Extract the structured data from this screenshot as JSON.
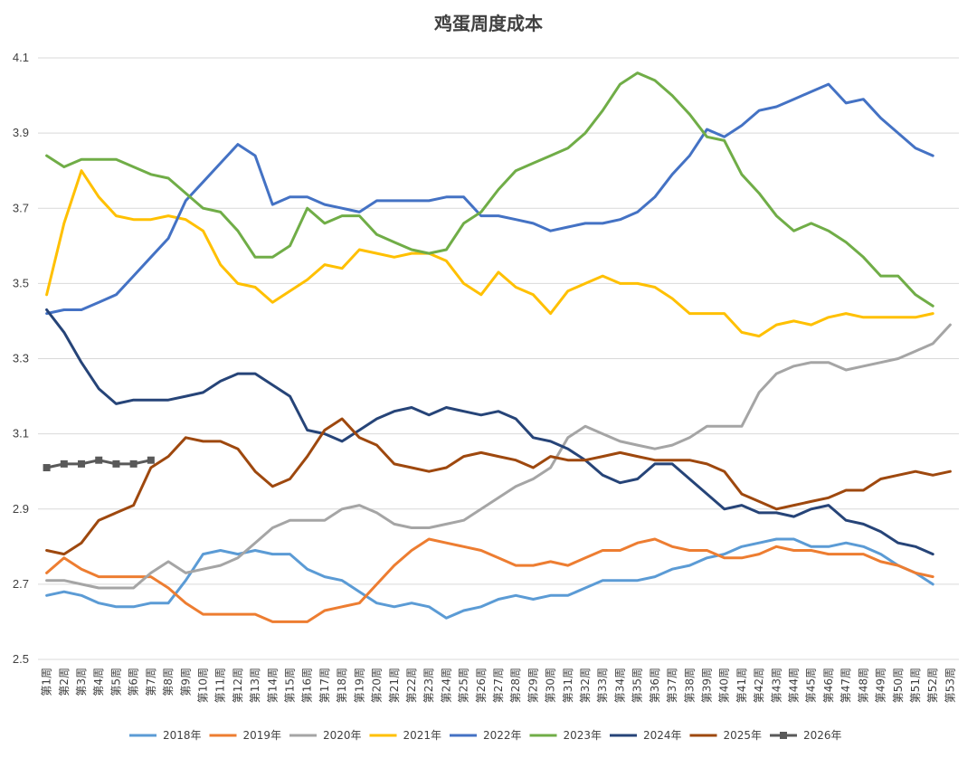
{
  "chart_data": {
    "type": "line",
    "title": "鸡蛋周度成本",
    "xlabel": "",
    "ylabel": "",
    "ylim": [
      2.5,
      4.1
    ],
    "yticks": [
      "2.5",
      "2.7",
      "2.9",
      "3.1",
      "3.3",
      "3.5",
      "3.7",
      "3.9",
      "4.1"
    ],
    "categories": [
      "第1周",
      "第2周",
      "第3周",
      "第4周",
      "第5周",
      "第6周",
      "第7周",
      "第8周",
      "第9周",
      "第10周",
      "第11周",
      "第12周",
      "第13周",
      "第14周",
      "第15周",
      "第16周",
      "第17周",
      "第18周",
      "第19周",
      "第20周",
      "第21周",
      "第22周",
      "第23周",
      "第24周",
      "第25周",
      "第26周",
      "第27周",
      "第28周",
      "第29周",
      "第30周",
      "第31周",
      "第32周",
      "第33周",
      "第34周",
      "第35周",
      "第36周",
      "第37周",
      "第38周",
      "第39周",
      "第40周",
      "第41周",
      "第42周",
      "第43周",
      "第44周",
      "第45周",
      "第46周",
      "第47周",
      "第48周",
      "第49周",
      "第50周",
      "第51周",
      "第52周",
      "第53周"
    ],
    "legend_position": "bottom",
    "grid": true,
    "series": [
      {
        "name": "2018年",
        "color": "#5b9bd5",
        "marker": "none",
        "values": [
          2.67,
          2.68,
          2.67,
          2.65,
          2.64,
          2.64,
          2.65,
          2.65,
          2.71,
          2.78,
          2.79,
          2.78,
          2.79,
          2.78,
          2.78,
          2.74,
          2.72,
          2.71,
          2.68,
          2.65,
          2.64,
          2.65,
          2.64,
          2.61,
          2.63,
          2.64,
          2.66,
          2.67,
          2.66,
          2.67,
          2.67,
          2.69,
          2.71,
          2.71,
          2.71,
          2.72,
          2.74,
          2.75,
          2.77,
          2.78,
          2.8,
          2.81,
          2.82,
          2.82,
          2.8,
          2.8,
          2.81,
          2.8,
          2.78,
          2.75,
          2.73,
          2.7,
          null
        ]
      },
      {
        "name": "2019年",
        "color": "#ed7d31",
        "marker": "none",
        "values": [
          2.73,
          2.77,
          2.74,
          2.72,
          2.72,
          2.72,
          2.72,
          2.69,
          2.65,
          2.62,
          2.62,
          2.62,
          2.62,
          2.6,
          2.6,
          2.6,
          2.63,
          2.64,
          2.65,
          2.7,
          2.75,
          2.79,
          2.82,
          2.81,
          2.8,
          2.79,
          2.77,
          2.75,
          2.75,
          2.76,
          2.75,
          2.77,
          2.79,
          2.79,
          2.81,
          2.82,
          2.8,
          2.79,
          2.79,
          2.77,
          2.77,
          2.78,
          2.8,
          2.79,
          2.79,
          2.78,
          2.78,
          2.78,
          2.76,
          2.75,
          2.73,
          2.72,
          null
        ]
      },
      {
        "name": "2020年",
        "color": "#a5a5a5",
        "marker": "none",
        "values": [
          2.71,
          2.71,
          2.7,
          2.69,
          2.69,
          2.69,
          2.73,
          2.76,
          2.73,
          2.74,
          2.75,
          2.77,
          2.81,
          2.85,
          2.87,
          2.87,
          2.87,
          2.9,
          2.91,
          2.89,
          2.86,
          2.85,
          2.85,
          2.86,
          2.87,
          2.9,
          2.93,
          2.96,
          2.98,
          3.01,
          3.09,
          3.12,
          3.1,
          3.08,
          3.07,
          3.06,
          3.07,
          3.09,
          3.12,
          3.12,
          3.12,
          3.21,
          3.26,
          3.28,
          3.29,
          3.29,
          3.27,
          3.28,
          3.29,
          3.3,
          3.32,
          3.34,
          3.39
        ]
      },
      {
        "name": "2021年",
        "color": "#ffc000",
        "marker": "none",
        "values": [
          3.47,
          3.66,
          3.8,
          3.73,
          3.68,
          3.67,
          3.67,
          3.68,
          3.67,
          3.64,
          3.55,
          3.5,
          3.49,
          3.45,
          3.48,
          3.51,
          3.55,
          3.54,
          3.59,
          3.58,
          3.57,
          3.58,
          3.58,
          3.56,
          3.5,
          3.47,
          3.53,
          3.49,
          3.47,
          3.42,
          3.48,
          3.5,
          3.52,
          3.5,
          3.5,
          3.49,
          3.46,
          3.42,
          3.42,
          3.42,
          3.37,
          3.36,
          3.39,
          3.4,
          3.39,
          3.41,
          3.42,
          3.41,
          3.41,
          3.41,
          3.41,
          3.42,
          null
        ]
      },
      {
        "name": "2022年",
        "color": "#4472c4",
        "marker": "none",
        "values": [
          3.42,
          3.43,
          3.43,
          3.45,
          3.47,
          3.52,
          3.57,
          3.62,
          3.72,
          3.77,
          3.82,
          3.87,
          3.84,
          3.71,
          3.73,
          3.73,
          3.71,
          3.7,
          3.69,
          3.72,
          3.72,
          3.72,
          3.72,
          3.73,
          3.73,
          3.68,
          3.68,
          3.67,
          3.66,
          3.64,
          3.65,
          3.66,
          3.66,
          3.67,
          3.69,
          3.73,
          3.79,
          3.84,
          3.91,
          3.89,
          3.92,
          3.96,
          3.97,
          3.99,
          4.01,
          4.03,
          3.98,
          3.99,
          3.94,
          3.9,
          3.86,
          3.84,
          null
        ]
      },
      {
        "name": "2023年",
        "color": "#70ad47",
        "marker": "none",
        "values": [
          3.84,
          3.81,
          3.83,
          3.83,
          3.83,
          3.81,
          3.79,
          3.78,
          3.74,
          3.7,
          3.69,
          3.64,
          3.57,
          3.57,
          3.6,
          3.7,
          3.66,
          3.68,
          3.68,
          3.63,
          3.61,
          3.59,
          3.58,
          3.59,
          3.66,
          3.69,
          3.75,
          3.8,
          3.82,
          3.84,
          3.86,
          3.9,
          3.96,
          4.03,
          4.06,
          4.04,
          4.0,
          3.95,
          3.89,
          3.88,
          3.79,
          3.74,
          3.68,
          3.64,
          3.66,
          3.64,
          3.61,
          3.57,
          3.52,
          3.52,
          3.47,
          3.44,
          null
        ]
      },
      {
        "name": "2024年",
        "color": "#264478",
        "marker": "none",
        "values": [
          3.43,
          3.37,
          3.29,
          3.22,
          3.18,
          3.19,
          3.19,
          3.19,
          3.2,
          3.21,
          3.24,
          3.26,
          3.26,
          3.23,
          3.2,
          3.11,
          3.1,
          3.08,
          3.11,
          3.14,
          3.16,
          3.17,
          3.15,
          3.17,
          3.16,
          3.15,
          3.16,
          3.14,
          3.09,
          3.08,
          3.06,
          3.03,
          2.99,
          2.97,
          2.98,
          3.02,
          3.02,
          2.98,
          2.94,
          2.9,
          2.91,
          2.89,
          2.89,
          2.88,
          2.9,
          2.91,
          2.87,
          2.86,
          2.84,
          2.81,
          2.8,
          2.78,
          null
        ]
      },
      {
        "name": "2025年",
        "color": "#9e480e",
        "marker": "none",
        "values": [
          2.79,
          2.78,
          2.81,
          2.87,
          2.89,
          2.91,
          3.01,
          3.04,
          3.09,
          3.08,
          3.08,
          3.06,
          3.0,
          2.96,
          2.98,
          3.04,
          3.11,
          3.14,
          3.09,
          3.07,
          3.02,
          3.01,
          3.0,
          3.01,
          3.04,
          3.05,
          3.04,
          3.03,
          3.01,
          3.04,
          3.03,
          3.03,
          3.04,
          3.05,
          3.04,
          3.03,
          3.03,
          3.03,
          3.02,
          3.0,
          2.94,
          2.92,
          2.9,
          2.91,
          2.92,
          2.93,
          2.95,
          2.95,
          2.98,
          2.99,
          3.0,
          2.99,
          3.0
        ]
      },
      {
        "name": "2026年",
        "color": "#595959",
        "marker": "square",
        "values": [
          3.01,
          3.02,
          3.02,
          3.03,
          3.02,
          3.02,
          3.03,
          null,
          null,
          null,
          null,
          null,
          null,
          null,
          null,
          null,
          null,
          null,
          null,
          null,
          null,
          null,
          null,
          null,
          null,
          null,
          null,
          null,
          null,
          null,
          null,
          null,
          null,
          null,
          null,
          null,
          null,
          null,
          null,
          null,
          null,
          null,
          null,
          null,
          null,
          null,
          null,
          null,
          null,
          null,
          null,
          null,
          null
        ]
      }
    ]
  }
}
